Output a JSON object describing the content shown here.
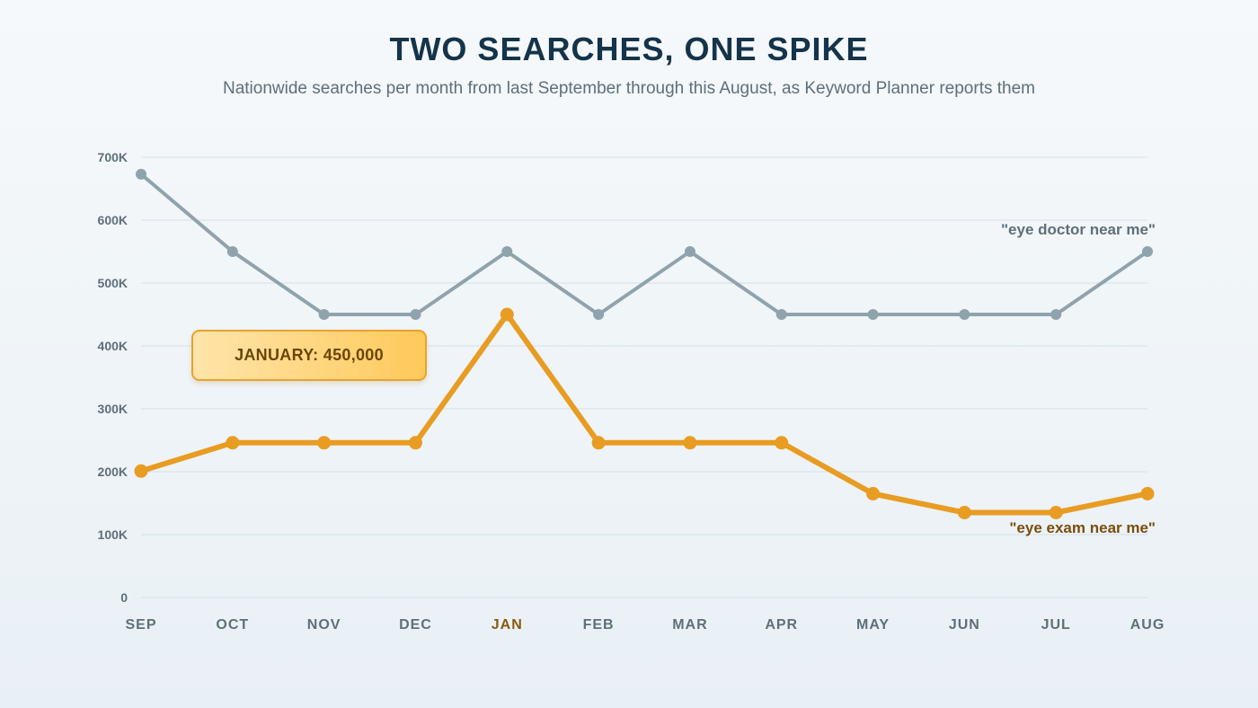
{
  "chart_data": {
    "type": "line",
    "title": "TWO SEARCHES, ONE SPIKE",
    "subtitle": "Nationwide searches per month from last September through this August, as Keyword Planner reports them",
    "categories": [
      "SEP",
      "OCT",
      "NOV",
      "DEC",
      "JAN",
      "FEB",
      "MAR",
      "APR",
      "MAY",
      "JUN",
      "JUL",
      "AUG"
    ],
    "highlight_category": "JAN",
    "y_ticks": [
      {
        "value": 0,
        "label": "0"
      },
      {
        "value": 100000,
        "label": "100K"
      },
      {
        "value": 200000,
        "label": "200K"
      },
      {
        "value": 300000,
        "label": "300K"
      },
      {
        "value": 400000,
        "label": "400K"
      },
      {
        "value": 500000,
        "label": "500K"
      },
      {
        "value": 600000,
        "label": "600K"
      },
      {
        "value": 700000,
        "label": "700K"
      }
    ],
    "ylim": [
      0,
      700000
    ],
    "grid": true,
    "series": [
      {
        "name": "\"eye doctor near me\"",
        "color": "#8fa3ad",
        "label_color": "#5e6f7a",
        "values": [
          673000,
          550000,
          450000,
          450000,
          550000,
          450000,
          550000,
          450000,
          450000,
          450000,
          450000,
          550000
        ]
      },
      {
        "name": "\"eye exam near me\"",
        "color": "#e89c22",
        "label_color": "#7a4d0c",
        "values": [
          201000,
          246000,
          246000,
          246000,
          450000,
          246000,
          246000,
          246000,
          165000,
          135000,
          135000,
          165000
        ]
      }
    ],
    "annotation": {
      "text": "JANUARY: 450,000"
    }
  }
}
